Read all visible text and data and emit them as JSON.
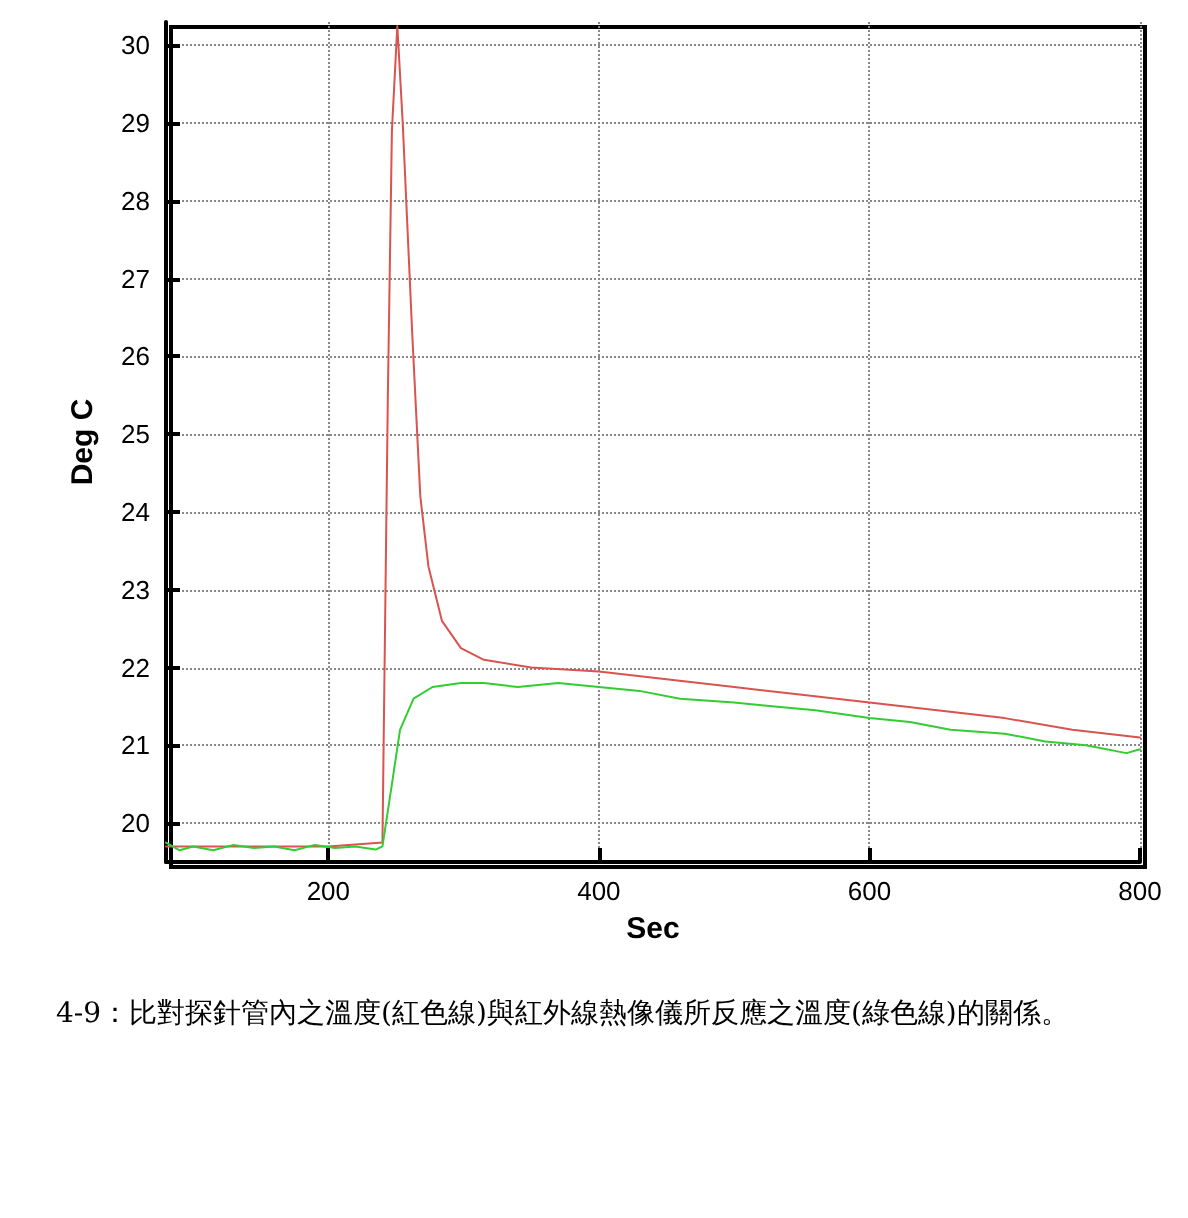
{
  "chart_data": {
    "type": "line",
    "xlabel": "Sec",
    "ylabel": "Deg C",
    "annotations": [
      "4-9：比對探針管內之溫度(紅色線)與紅外線熱像儀所反應之溫度(綠色線)的關係。"
    ],
    "xlim": [
      80,
      800
    ],
    "ylim": [
      19.5,
      30.3
    ],
    "xticks": [
      200,
      400,
      600,
      800
    ],
    "yticks": [
      20,
      21,
      22,
      23,
      24,
      25,
      26,
      27,
      28,
      29,
      30
    ],
    "grid": true,
    "marker": "none",
    "line_style": "solid",
    "series": [
      {
        "color": "#d9534f",
        "x": [
          80,
          120,
          160,
          200,
          240,
          244,
          247,
          251,
          255,
          262,
          268,
          274,
          284,
          298,
          315,
          350,
          400,
          450,
          500,
          550,
          600,
          650,
          700,
          750,
          800
        ],
        "values": [
          19.7,
          19.7,
          19.7,
          19.7,
          19.75,
          25.5,
          28.9,
          30.25,
          29,
          26.3,
          24.2,
          23.3,
          22.6,
          22.25,
          22.1,
          22.0,
          21.95,
          21.85,
          21.75,
          21.65,
          21.55,
          21.45,
          21.35,
          21.2,
          21.1
        ]
      },
      {
        "color": "#33cc33",
        "x": [
          80,
          90,
          100,
          115,
          130,
          145,
          160,
          175,
          190,
          205,
          220,
          235,
          240,
          247,
          253,
          263,
          277,
          298,
          315,
          340,
          370,
          400,
          430,
          460,
          500,
          530,
          560,
          600,
          630,
          660,
          700,
          730,
          760,
          790,
          800
        ],
        "values": [
          19.75,
          19.65,
          19.7,
          19.65,
          19.72,
          19.68,
          19.7,
          19.65,
          19.72,
          19.68,
          19.7,
          19.66,
          19.7,
          20.5,
          21.2,
          21.6,
          21.75,
          21.8,
          21.8,
          21.75,
          21.8,
          21.75,
          21.7,
          21.6,
          21.55,
          21.5,
          21.45,
          21.35,
          21.3,
          21.2,
          21.15,
          21.05,
          21.0,
          20.9,
          20.95
        ]
      }
    ]
  }
}
